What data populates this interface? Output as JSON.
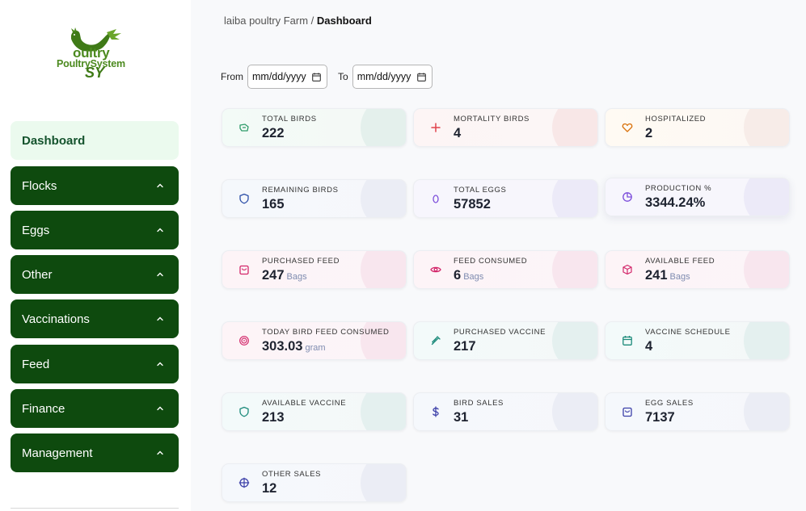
{
  "logo": {
    "line1": "oultry",
    "line2": "PoultrySystem",
    "line3": "SY"
  },
  "sidebar": {
    "items": [
      {
        "label": "Dashboard"
      },
      {
        "label": "Flocks"
      },
      {
        "label": "Eggs"
      },
      {
        "label": "Other"
      },
      {
        "label": "Vaccinations"
      },
      {
        "label": "Feed"
      },
      {
        "label": "Finance"
      },
      {
        "label": "Management"
      }
    ]
  },
  "breadcrumb": {
    "farm": "laiba poultry Farm",
    "separator": " / ",
    "current": "Dashboard"
  },
  "filters": {
    "from_label": "From",
    "from_value": "mm/dd/yyyy",
    "to_label": "To",
    "to_value": "mm/dd/yyyy"
  },
  "cards": [
    {
      "label": "TOTAL BIRDS",
      "value": "222",
      "unit": "",
      "icon": "birds-icon",
      "color": "#2e9b6a"
    },
    {
      "label": "MORTALITY BIRDS",
      "value": "4",
      "unit": "",
      "icon": "plus-icon",
      "color": "#e0424b"
    },
    {
      "label": "HOSPITALIZED",
      "value": "2",
      "unit": "",
      "icon": "heart-icon",
      "color": "#d9730d"
    },
    {
      "label": "REMAINING BIRDS",
      "value": "165",
      "unit": "",
      "icon": "shield-icon",
      "color": "#2c4fa8"
    },
    {
      "label": "TOTAL EGGS",
      "value": "57852",
      "unit": "",
      "icon": "egg-icon",
      "color": "#7c4ddb"
    },
    {
      "label": "PRODUCTION %",
      "value": "3344.24%",
      "unit": "",
      "icon": "pie-chart-icon",
      "color": "#7c4ddb"
    },
    {
      "label": "PURCHASED FEED",
      "value": "247",
      "unit": "Bags",
      "icon": "bag-icon",
      "color": "#d3276a"
    },
    {
      "label": "FEED CONSUMED",
      "value": "6",
      "unit": "Bags",
      "icon": "eye-icon",
      "color": "#d3276a"
    },
    {
      "label": "AVAILABLE FEED",
      "value": "241",
      "unit": "Bags",
      "icon": "box-icon",
      "color": "#d3276a"
    },
    {
      "label": "TODAY BIRD FEED CONSUMED",
      "value": "303.03",
      "unit": "gram",
      "icon": "target-icon",
      "color": "#d3276a"
    },
    {
      "label": "PURCHASED VACCINE",
      "value": "217",
      "unit": "",
      "icon": "syringe-icon",
      "color": "#1b8a7a"
    },
    {
      "label": "VACCINE SCHEDULE",
      "value": "4",
      "unit": "",
      "icon": "calendar-icon",
      "color": "#1b8a7a"
    },
    {
      "label": "AVAILABLE VACCINE",
      "value": "213",
      "unit": "",
      "icon": "shield-icon",
      "color": "#1b8a7a"
    },
    {
      "label": "BIRD SALES",
      "value": "31",
      "unit": "",
      "icon": "dollar-icon",
      "color": "#3b3fa8"
    },
    {
      "label": "EGG SALES",
      "value": "7137",
      "unit": "",
      "icon": "bag-icon",
      "color": "#3b3fa8"
    },
    {
      "label": "OTHER SALES",
      "value": "12",
      "unit": "",
      "icon": "crosshair-icon",
      "color": "#3b3fa8"
    }
  ]
}
